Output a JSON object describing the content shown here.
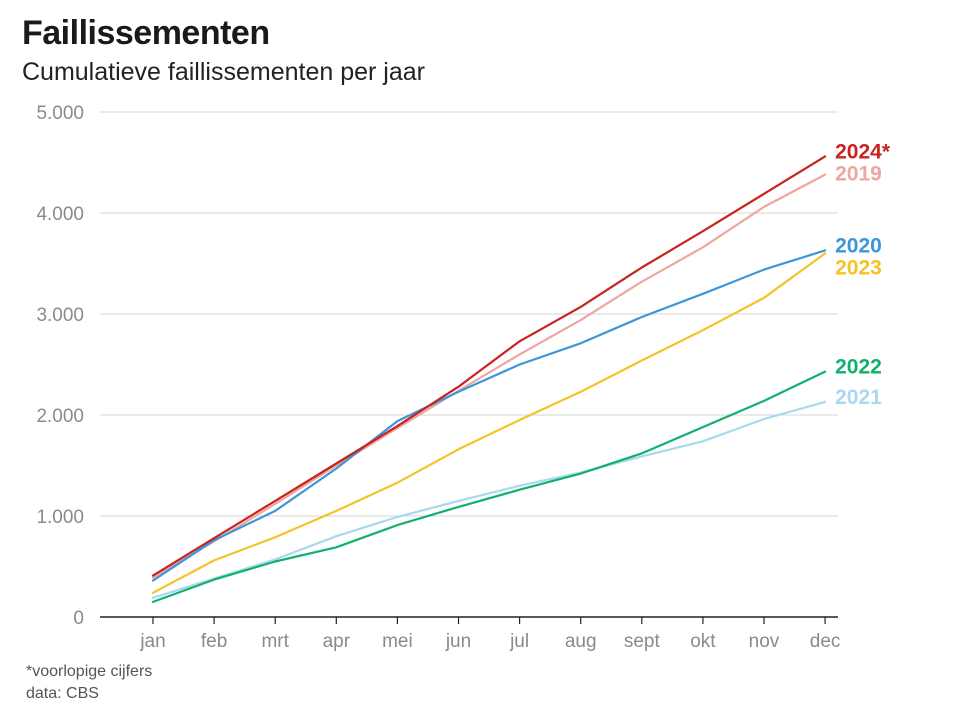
{
  "title": "Faillissementen",
  "subtitle": "Cumulatieve faillissementen per jaar",
  "footnote": "*voorlopige cijfers",
  "source": "data: CBS",
  "chart_data": {
    "type": "line",
    "title": "Faillissementen",
    "subtitle": "Cumulatieve faillissementen per jaar",
    "xlabel": "",
    "ylabel": "",
    "categories": [
      "jan",
      "feb",
      "mrt",
      "apr",
      "mei",
      "jun",
      "jul",
      "aug",
      "sept",
      "okt",
      "nov",
      "dec"
    ],
    "ylim": [
      0,
      5000
    ],
    "yticks": [
      0,
      1000,
      2000,
      3000,
      4000,
      5000
    ],
    "ytick_labels": [
      "0",
      "1.000",
      "2.000",
      "3.000",
      "4.000",
      "5.000"
    ],
    "grid": true,
    "legend": "line-end labels",
    "series": [
      {
        "name": "2021",
        "color": "#a9d8ef",
        "values": [
          190,
          380,
          570,
          800,
          990,
          1150,
          1300,
          1430,
          1590,
          1740,
          1960,
          2130
        ]
      },
      {
        "name": "2022",
        "color": "#12b06e",
        "values": [
          150,
          370,
          550,
          690,
          910,
          1090,
          1260,
          1420,
          1620,
          1880,
          2140,
          2430
        ]
      },
      {
        "name": "2023",
        "color": "#f5c228",
        "values": [
          240,
          560,
          790,
          1050,
          1330,
          1660,
          1950,
          2230,
          2540,
          2840,
          3160,
          3600
        ]
      },
      {
        "name": "2019",
        "color": "#eea6a0",
        "values": [
          390,
          750,
          1120,
          1500,
          1870,
          2240,
          2600,
          2940,
          3320,
          3660,
          4060,
          4380
        ]
      },
      {
        "name": "2020",
        "color": "#3a97d9",
        "values": [
          360,
          760,
          1050,
          1470,
          1940,
          2230,
          2500,
          2710,
          2970,
          3200,
          3440,
          3630
        ]
      },
      {
        "name": "2024*",
        "color": "#c8231c",
        "values": [
          410,
          780,
          1150,
          1520,
          1890,
          2280,
          2730,
          3070,
          3460,
          3820,
          4190,
          4560
        ]
      }
    ],
    "end_labels": [
      {
        "text": "2024",
        "suffix": "*",
        "series": "2024*",
        "color": "#c8231c"
      },
      {
        "text": "2019",
        "suffix": "",
        "series": "2019",
        "color": "#eea6a0"
      },
      {
        "text": "2020",
        "suffix": "",
        "series": "2020",
        "color": "#3a97d9"
      },
      {
        "text": "2023",
        "suffix": "",
        "series": "2023",
        "color": "#f5c228"
      },
      {
        "text": "2022",
        "suffix": "",
        "series": "2022",
        "color": "#12b06e"
      },
      {
        "text": "2021",
        "suffix": "",
        "series": "2021",
        "color": "#a9d8ef"
      }
    ]
  }
}
